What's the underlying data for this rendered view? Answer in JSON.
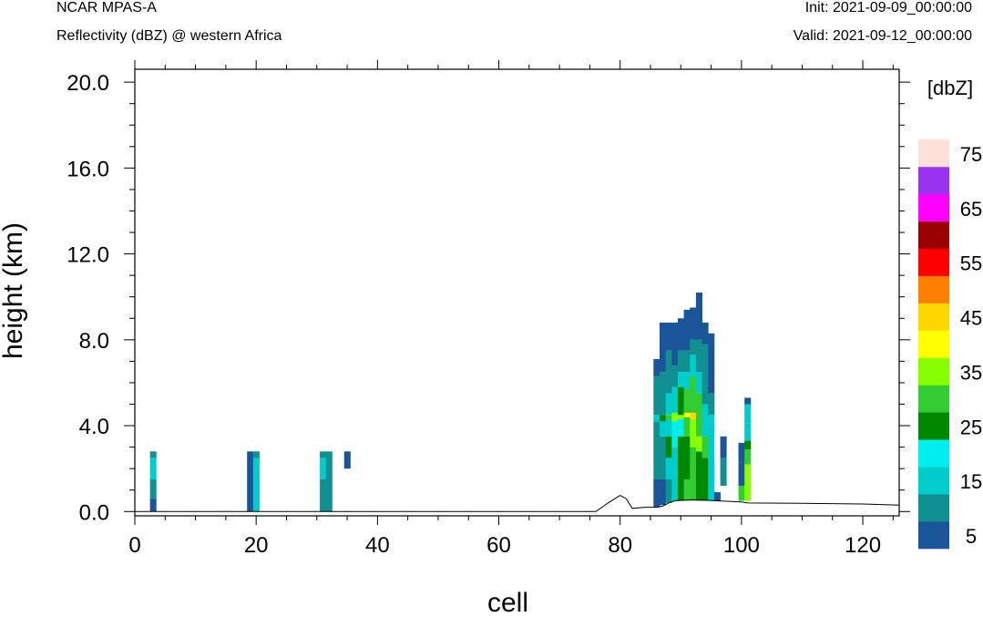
{
  "header": {
    "model": "NCAR MPAS-A",
    "subtitle": "Reflectivity (dBZ) @ western Africa",
    "init": "Init: 2021-09-09_00:00:00",
    "valid": "Valid: 2021-09-12_00:00:00"
  },
  "chart_data": {
    "type": "heatmap",
    "xlabel": "cell",
    "ylabel": "height (km)",
    "xlim": [
      0,
      126
    ],
    "ylim": [
      -0.2,
      20.6
    ],
    "x_ticks": [
      "0",
      "20",
      "40",
      "60",
      "80",
      "100",
      "120"
    ],
    "x_tick_values": [
      0,
      20,
      40,
      60,
      80,
      100,
      120
    ],
    "y_ticks": [
      "0.0",
      "4.0",
      "8.0",
      "12.0",
      "16.0",
      "20.0"
    ],
    "y_tick_values": [
      0,
      4,
      8,
      12,
      16,
      20
    ],
    "colorbar": {
      "title": "[dbZ]",
      "levels": [
        5,
        10,
        15,
        20,
        25,
        30,
        35,
        40,
        45,
        50,
        55,
        60,
        65,
        70,
        75
      ],
      "colors": [
        "#1a5599",
        "#109090",
        "#00cccc",
        "#00eeee",
        "#008800",
        "#33cc33",
        "#88ff00",
        "#ffff00",
        "#ffd700",
        "#ff8000",
        "#ff0000",
        "#990000",
        "#ff00ff",
        "#9933ee",
        "#ffe0d8"
      ],
      "labels": [
        "5",
        "15",
        "25",
        "35",
        "45",
        "55",
        "65",
        "75"
      ],
      "label_levels": [
        5,
        15,
        25,
        35,
        45,
        55,
        65,
        75
      ]
    },
    "terrain": [
      [
        0,
        0
      ],
      [
        76,
        0
      ],
      [
        78,
        0.4
      ],
      [
        80,
        0.75
      ],
      [
        81,
        0.6
      ],
      [
        82,
        0.15
      ],
      [
        84,
        0.2
      ],
      [
        86,
        0.2
      ],
      [
        87,
        0.25
      ],
      [
        88,
        0.4
      ],
      [
        89,
        0.5
      ],
      [
        92,
        0.55
      ],
      [
        96,
        0.5
      ],
      [
        100,
        0.45
      ],
      [
        101,
        0.4
      ],
      [
        110,
        0.38
      ],
      [
        120,
        0.35
      ],
      [
        126,
        0.3
      ]
    ],
    "columns": [
      {
        "x": 3,
        "cells": [
          [
            0,
            0.6,
            5
          ],
          [
            0.6,
            1.5,
            10
          ],
          [
            1.5,
            2.5,
            15
          ],
          [
            2.5,
            2.8,
            10
          ]
        ]
      },
      {
        "x": 19,
        "cells": [
          [
            0,
            2.8,
            5
          ]
        ]
      },
      {
        "x": 20,
        "cells": [
          [
            0,
            2.5,
            15
          ],
          [
            2.5,
            2.8,
            10
          ]
        ]
      },
      {
        "x": 31,
        "cells": [
          [
            0,
            1.5,
            10
          ],
          [
            1.5,
            2.5,
            15
          ],
          [
            2.5,
            2.8,
            10
          ]
        ]
      },
      {
        "x": 32,
        "cells": [
          [
            0,
            2.8,
            10
          ]
        ]
      },
      {
        "x": 35,
        "cells": [
          [
            2.0,
            2.8,
            5
          ]
        ]
      },
      {
        "x": 86,
        "cells": [
          [
            0.2,
            1.5,
            5
          ],
          [
            1.5,
            4.2,
            10
          ],
          [
            4.2,
            4.5,
            15
          ],
          [
            4.5,
            6.3,
            10
          ],
          [
            6.3,
            7.1,
            5
          ]
        ]
      },
      {
        "x": 87,
        "cells": [
          [
            0.3,
            1.5,
            5
          ],
          [
            1.5,
            3.5,
            10
          ],
          [
            3.5,
            4.2,
            15
          ],
          [
            4.2,
            4.5,
            25
          ],
          [
            4.5,
            6.5,
            10
          ],
          [
            6.5,
            8.8,
            5
          ]
        ]
      },
      {
        "x": 88,
        "cells": [
          [
            0.4,
            1.5,
            10
          ],
          [
            1.5,
            2.5,
            15
          ],
          [
            2.5,
            3.5,
            25
          ],
          [
            3.5,
            4.3,
            15
          ],
          [
            4.3,
            4.5,
            30
          ],
          [
            4.5,
            5.5,
            15
          ],
          [
            5.5,
            7.5,
            10
          ],
          [
            7.5,
            8.8,
            5
          ]
        ]
      },
      {
        "x": 89,
        "cells": [
          [
            0.5,
            3.0,
            15
          ],
          [
            3.0,
            4.2,
            20
          ],
          [
            4.2,
            4.6,
            35
          ],
          [
            4.6,
            5.8,
            15
          ],
          [
            5.8,
            6.8,
            10
          ],
          [
            6.8,
            8.8,
            5
          ]
        ]
      },
      {
        "x": 90,
        "cells": [
          [
            0.5,
            3.5,
            25
          ],
          [
            3.5,
            4.3,
            20
          ],
          [
            4.3,
            4.5,
            35
          ],
          [
            4.5,
            5.8,
            25
          ],
          [
            5.8,
            6.5,
            15
          ],
          [
            6.5,
            7.5,
            10
          ],
          [
            7.5,
            9.0,
            5
          ]
        ]
      },
      {
        "x": 91,
        "cells": [
          [
            0.5,
            1.5,
            30
          ],
          [
            1.5,
            3.5,
            25
          ],
          [
            3.5,
            4.4,
            30
          ],
          [
            4.4,
            4.6,
            40
          ],
          [
            4.6,
            5.7,
            30
          ],
          [
            5.7,
            6.5,
            15
          ],
          [
            6.5,
            7.5,
            10
          ],
          [
            7.5,
            9.4,
            5
          ]
        ]
      },
      {
        "x": 92,
        "cells": [
          [
            0.5,
            3.0,
            30
          ],
          [
            3.0,
            4.3,
            35
          ],
          [
            4.3,
            4.6,
            45
          ],
          [
            4.6,
            6.3,
            30
          ],
          [
            6.3,
            7.3,
            15
          ],
          [
            7.3,
            8.0,
            10
          ],
          [
            8.0,
            9.5,
            5
          ]
        ]
      },
      {
        "x": 93,
        "cells": [
          [
            0.5,
            2.8,
            25
          ],
          [
            2.8,
            3.5,
            35
          ],
          [
            3.5,
            5.5,
            30
          ],
          [
            5.5,
            6.5,
            15
          ],
          [
            6.5,
            8.0,
            10
          ],
          [
            8.0,
            10.2,
            5
          ]
        ]
      },
      {
        "x": 94,
        "cells": [
          [
            0.5,
            2.5,
            25
          ],
          [
            2.5,
            3.5,
            30
          ],
          [
            3.5,
            5.0,
            15
          ],
          [
            5.0,
            7.8,
            10
          ],
          [
            7.8,
            8.8,
            5
          ]
        ]
      },
      {
        "x": 95,
        "cells": [
          [
            0.5,
            4.5,
            15
          ],
          [
            4.5,
            5.5,
            10
          ],
          [
            5.5,
            8.3,
            5
          ]
        ]
      },
      {
        "x": 96,
        "cells": [
          [
            0.5,
            0.9,
            5
          ]
        ]
      },
      {
        "x": 97,
        "cells": [
          [
            1.2,
            2.5,
            10
          ],
          [
            2.5,
            3.5,
            5
          ]
        ]
      },
      {
        "x": 100,
        "cells": [
          [
            0.5,
            1.2,
            30
          ],
          [
            1.2,
            2.3,
            5
          ],
          [
            2.3,
            3.2,
            5
          ]
        ]
      },
      {
        "x": 101,
        "cells": [
          [
            0.5,
            2.2,
            35
          ],
          [
            2.2,
            2.9,
            30
          ],
          [
            2.9,
            3.3,
            25
          ],
          [
            3.3,
            4.1,
            15
          ],
          [
            4.1,
            5.0,
            15
          ],
          [
            5.0,
            5.3,
            5
          ]
        ]
      }
    ]
  }
}
